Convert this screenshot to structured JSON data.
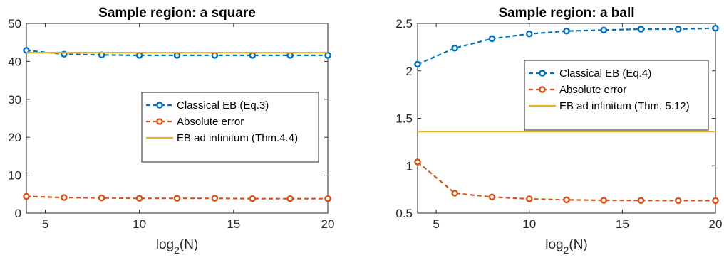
{
  "chart_data": [
    {
      "type": "line",
      "title": "Sample region:  a square",
      "xlabel": "log2(N)",
      "xlabel_main": "log",
      "xlabel_sub": "2",
      "xlabel_tail": "(N)",
      "ylabel": "",
      "xlim": [
        4,
        20
      ],
      "ylim": [
        0,
        50
      ],
      "xticks": [
        5,
        10,
        15,
        20
      ],
      "yticks": [
        0,
        10,
        20,
        30,
        40,
        50
      ],
      "grid": false,
      "legend_position": "middle-right",
      "x": [
        4,
        6,
        8,
        10,
        12,
        14,
        16,
        18,
        20
      ],
      "series": [
        {
          "name": "Classical EB (Eq.3)",
          "style": "dashed-markers",
          "color": "#0072bd",
          "values": [
            42.9,
            41.9,
            41.7,
            41.6,
            41.6,
            41.6,
            41.6,
            41.6,
            41.6
          ]
        },
        {
          "name": "Absolute error",
          "style": "dashed-markers",
          "color": "#d95319",
          "values": [
            4.4,
            4.1,
            4.0,
            3.9,
            3.9,
            3.9,
            3.8,
            3.8,
            3.8
          ]
        },
        {
          "name": "EB ad infinitum (Thm.4.4)",
          "style": "solid",
          "color": "#edb120",
          "values": [
            42.3,
            42.3,
            42.3,
            42.3,
            42.3,
            42.3,
            42.3,
            42.3,
            42.3
          ]
        }
      ]
    },
    {
      "type": "line",
      "title": "Sample region: a ball",
      "xlabel": "log2(N)",
      "xlabel_main": "log",
      "xlabel_sub": "2",
      "xlabel_tail": "(N)",
      "ylabel": "",
      "xlim": [
        4,
        20
      ],
      "ylim": [
        0.5,
        2.5
      ],
      "xticks": [
        5,
        10,
        15,
        20
      ],
      "yticks": [
        0.5,
        1,
        1.5,
        2,
        2.5
      ],
      "ytick_labels": [
        "0.5",
        "1",
        "1.5",
        "2",
        "2.5"
      ],
      "grid": false,
      "legend_position": "top-right",
      "x": [
        4,
        6,
        8,
        10,
        12,
        14,
        16,
        18,
        20
      ],
      "series": [
        {
          "name": "Classical EB (Eq.4)",
          "style": "dashed-markers",
          "color": "#0072bd",
          "values": [
            2.07,
            2.24,
            2.34,
            2.39,
            2.42,
            2.43,
            2.44,
            2.44,
            2.45
          ]
        },
        {
          "name": "Absolute error",
          "style": "dashed-markers",
          "color": "#d95319",
          "values": [
            1.04,
            0.71,
            0.67,
            0.65,
            0.64,
            0.635,
            0.633,
            0.632,
            0.632
          ]
        },
        {
          "name": "EB ad infinitum (Thm. 5.12)",
          "style": "solid",
          "color": "#edb120",
          "values": [
            1.36,
            1.36,
            1.36,
            1.36,
            1.36,
            1.36,
            1.36,
            1.36,
            1.36
          ]
        }
      ]
    }
  ]
}
